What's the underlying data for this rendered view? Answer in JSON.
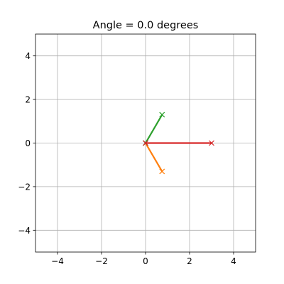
{
  "chart_data": {
    "type": "line",
    "title": "Angle = 0.0 degrees",
    "xlabel": "",
    "ylabel": "",
    "xlim": [
      -5,
      5
    ],
    "ylim": [
      -5,
      5
    ],
    "grid": true,
    "x_ticks": [
      -4,
      -2,
      0,
      2,
      4
    ],
    "y_ticks": [
      -4,
      -2,
      0,
      2,
      4
    ],
    "x_tick_labels": [
      "−4",
      "−2",
      "0",
      "2",
      "4"
    ],
    "y_tick_labels": [
      "−4",
      "−2",
      "0",
      "2",
      "4"
    ],
    "series": [
      {
        "color": "#1f77b4",
        "marker": "x",
        "points": [
          [
            0,
            0
          ],
          [
            0,
            0
          ]
        ]
      },
      {
        "color": "#ff7f0e",
        "marker": "x",
        "points": [
          [
            0,
            0
          ],
          [
            0.75,
            -1.3
          ]
        ]
      },
      {
        "color": "#2ca02c",
        "marker": "x",
        "points": [
          [
            0,
            0
          ],
          [
            0.75,
            1.3
          ]
        ]
      },
      {
        "color": "#d62728",
        "marker": "x",
        "points": [
          [
            0,
            0
          ],
          [
            3,
            0
          ]
        ]
      }
    ]
  }
}
